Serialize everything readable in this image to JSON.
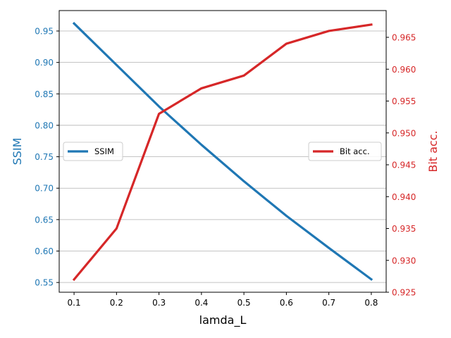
{
  "chart_data": {
    "type": "line",
    "title": "",
    "xlabel": "lamda_L",
    "x": [
      0.1,
      0.2,
      0.3,
      0.4,
      0.5,
      0.6,
      0.7,
      0.8
    ],
    "x_ticks": [
      "0.1",
      "0.2",
      "0.3",
      "0.4",
      "0.5",
      "0.6",
      "0.7",
      "0.8"
    ],
    "xlim": [
      0.065,
      0.835
    ],
    "grid": "horizontal",
    "axes": [
      {
        "side": "left",
        "label": "SSIM",
        "color": "#1f77b4",
        "ylim": [
          0.5345,
          0.9825
        ],
        "ticks": [
          "0.55",
          "0.60",
          "0.65",
          "0.70",
          "0.75",
          "0.80",
          "0.85",
          "0.90",
          "0.95"
        ],
        "tick_values": [
          0.55,
          0.6,
          0.65,
          0.7,
          0.75,
          0.8,
          0.85,
          0.9,
          0.95
        ]
      },
      {
        "side": "right",
        "label": "Bit acc.",
        "color": "#d62728",
        "ylim": [
          0.925,
          0.9692
        ],
        "ticks": [
          "0.925",
          "0.930",
          "0.935",
          "0.940",
          "0.945",
          "0.950",
          "0.955",
          "0.960",
          "0.965"
        ],
        "tick_values": [
          0.925,
          0.93,
          0.935,
          0.94,
          0.945,
          0.95,
          0.955,
          0.96,
          0.965
        ]
      }
    ],
    "series": [
      {
        "name": "SSIM",
        "axis": "left",
        "color": "#1f77b4",
        "values": [
          0.962,
          0.896,
          0.83,
          0.769,
          0.711,
          0.656,
          0.605,
          0.555
        ],
        "legend_position": "center-left"
      },
      {
        "name": "Bit acc.",
        "axis": "right",
        "color": "#d62728",
        "values": [
          0.927,
          0.935,
          0.953,
          0.957,
          0.959,
          0.964,
          0.966,
          0.967
        ],
        "legend_position": "center-right"
      }
    ]
  }
}
